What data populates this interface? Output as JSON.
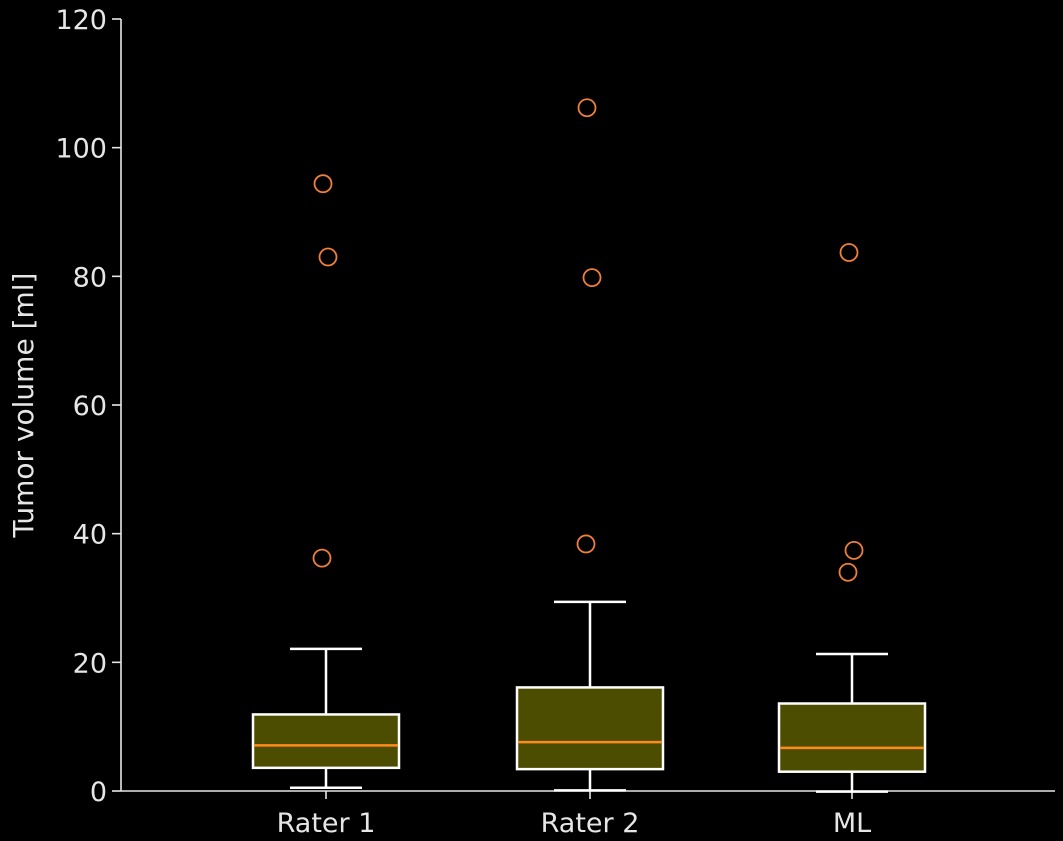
{
  "chart_data": {
    "type": "box",
    "ylabel": "Tumor volume  [ml]",
    "ylim": [
      0,
      120
    ],
    "yticks": [
      0,
      20,
      40,
      60,
      80,
      100,
      120
    ],
    "grid": false,
    "categories": [
      "Rater 1",
      "Rater 2",
      "ML"
    ],
    "boxes": [
      {
        "label": "Rater 1",
        "whisker_low": 0.5,
        "q1": 3.6,
        "median": 7.1,
        "q3": 11.9,
        "whisker_high": 22.1,
        "outliers": [
          36.2,
          83.0,
          94.4
        ]
      },
      {
        "label": "Rater 2",
        "whisker_low": 0.1,
        "q1": 3.4,
        "median": 7.6,
        "q3": 16.1,
        "whisker_high": 29.4,
        "outliers": [
          38.4,
          79.8,
          106.2
        ]
      },
      {
        "label": "ML",
        "whisker_low": -0.1,
        "q1": 3.0,
        "median": 6.7,
        "q3": 13.6,
        "whisker_high": 21.3,
        "outliers": [
          34.0,
          37.4,
          83.7
        ]
      }
    ],
    "colors": {
      "background": "#000000",
      "axis": "#e6e6e6",
      "text": "#e6e6e6",
      "box_fill": "#4d4d00",
      "box_edge": "#ffffff",
      "median": "#ff8c1a",
      "outlier": "#f07f3a",
      "whisker": "#ffffff"
    }
  }
}
